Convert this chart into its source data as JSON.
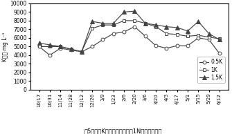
{
  "x_labels": [
    "10/17",
    "10/31",
    "11/14",
    "11/28",
    "12/12",
    "12/26",
    "1/9",
    "1/23",
    "2/6",
    "2/20",
    "3/6",
    "3/20",
    "4/3",
    "4/17",
    "5/1",
    "5/15",
    "5/29",
    "6/12"
  ],
  "series": {
    "0.5K": [
      5000,
      4000,
      4800,
      4600,
      4400,
      5000,
      5800,
      6500,
      6700,
      7300,
      6200,
      5100,
      4800,
      5100,
      5100,
      6000,
      5800,
      4200
    ],
    "1K": [
      5000,
      5000,
      5000,
      4700,
      4400,
      7100,
      7500,
      7500,
      8000,
      8000,
      7700,
      7300,
      6500,
      6400,
      6200,
      6300,
      6100,
      5900
    ],
    "1.5K": [
      5400,
      5200,
      5000,
      4700,
      4400,
      7900,
      7700,
      7700,
      9000,
      9100,
      7700,
      7500,
      7300,
      7200,
      6800,
      7900,
      6500,
      5800
    ]
  },
  "series_colors": {
    "0.5K": "#444444",
    "1K": "#444444",
    "1.5K": "#444444"
  },
  "series_markers": {
    "0.5K": "o",
    "1K": "s",
    "1.5K": "^"
  },
  "ylabel": "K濃度 mg L⁻¹",
  "title": "図5　汁液K濃度（上位葉身、1N処理）の推移",
  "ylim": [
    0,
    10000
  ],
  "yticks": [
    0,
    1000,
    2000,
    3000,
    4000,
    5000,
    6000,
    7000,
    8000,
    9000,
    10000
  ],
  "background_color": "#ffffff"
}
